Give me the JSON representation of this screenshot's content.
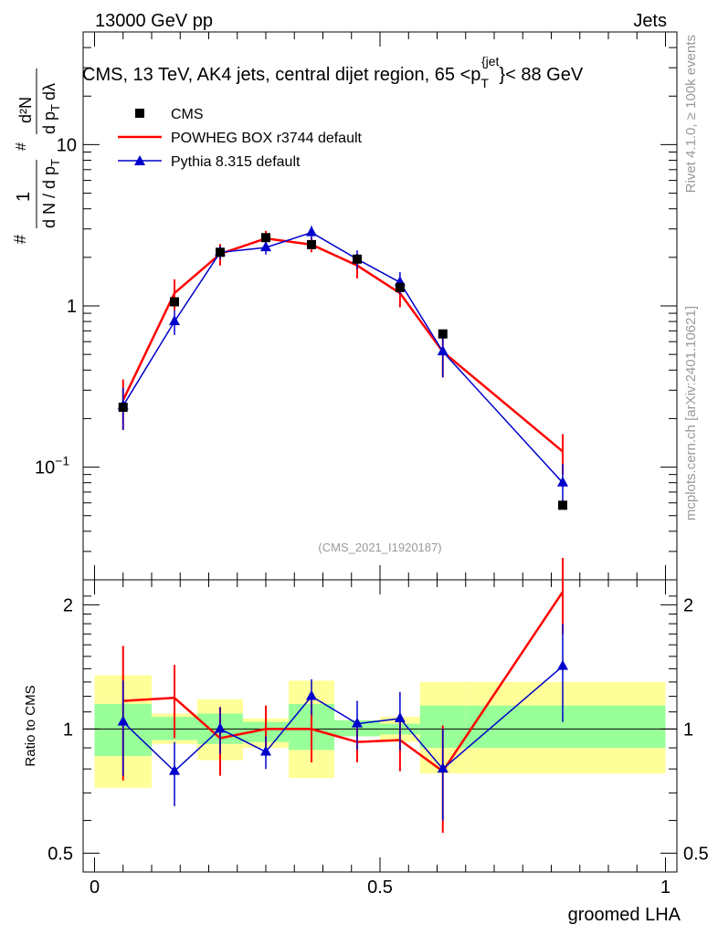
{
  "header": {
    "left": "13000 GeV pp",
    "right": "Jets"
  },
  "side_labels": {
    "rivet": "Rivet 4.1.0, ≥ 100k events",
    "mcplots": "mcplots.cern.ch [arXiv:2401.10621]"
  },
  "colors": {
    "cms": "#000000",
    "powheg": "#ff0000",
    "pythia": "#0000cc",
    "band_inner": "#99ff99",
    "band_outer": "#ffff99"
  },
  "chart_data": {
    "type": "line",
    "title_parts": {
      "main": "CMS, 13 TeV, AK4 jets, central dijet region, 65 <p",
      "sub": "T",
      "sup": "{jet",
      "tail": "}< 88 GeV"
    },
    "watermark": "(CMS_2021_I1920187)",
    "xlabel": "groomed LHA",
    "ylabel_main": {
      "frac_num": "1",
      "frac_den": "d N / d p",
      "frac_den_sub": "T",
      "hash": "#",
      "deriv_num": "d²N",
      "deriv_den": "d p",
      "deriv_den_sub": "T",
      "deriv_den_tail": "dλ"
    },
    "ylabel_ratio": "Ratio to CMS",
    "xlim": [
      -0.02,
      1.02
    ],
    "ylim_main": [
      0.02,
      50
    ],
    "ylim_ratio": [
      0.45,
      2.3
    ],
    "x_ticks": [
      0,
      0.5,
      1
    ],
    "x_tick_labels": [
      "0",
      "0.5",
      "1"
    ],
    "main_ticks": [
      {
        "value": 0.1,
        "label": "10",
        "sup": "−1"
      },
      {
        "value": 1,
        "label": "1",
        "sup": ""
      },
      {
        "value": 10,
        "label": "10",
        "sup": ""
      }
    ],
    "ratio_ticks": [
      {
        "value": 0.5,
        "label": "0.5"
      },
      {
        "value": 1,
        "label": "1"
      },
      {
        "value": 2,
        "label": "2"
      }
    ],
    "bin_edges": [
      0,
      0.1,
      0.18,
      0.26,
      0.34,
      0.42,
      0.5,
      0.57,
      0.65,
      1.0
    ],
    "series": [
      {
        "name": "CMS",
        "marker": "square",
        "x": [
          0.05,
          0.14,
          0.22,
          0.3,
          0.38,
          0.46,
          0.535,
          0.61,
          0.82
        ],
        "values": [
          0.235,
          1.06,
          2.15,
          2.65,
          2.4,
          1.95,
          1.3,
          0.67,
          0.058
        ]
      },
      {
        "name": "POWHEG BOX r3744 default",
        "marker": "line",
        "x": [
          0.05,
          0.14,
          0.22,
          0.3,
          0.38,
          0.46,
          0.535,
          0.61,
          0.82
        ],
        "values": [
          0.26,
          1.2,
          2.1,
          2.62,
          2.4,
          1.78,
          1.2,
          0.52,
          0.125
        ],
        "errors": [
          0.09,
          0.26,
          0.32,
          0.3,
          0.25,
          0.3,
          0.22,
          0.16,
          0.035
        ],
        "ratio": [
          1.17,
          1.19,
          0.95,
          1.0,
          1.0,
          0.93,
          0.94,
          0.79,
          2.15
        ],
        "ratio_err": [
          0.42,
          0.24,
          0.18,
          0.14,
          0.17,
          0.1,
          0.15,
          0.23,
          0.45
        ]
      },
      {
        "name": "Pythia 8.315 default",
        "marker": "triangle",
        "x": [
          0.05,
          0.14,
          0.22,
          0.3,
          0.38,
          0.46,
          0.535,
          0.61,
          0.82
        ],
        "values": [
          0.24,
          0.8,
          2.15,
          2.3,
          2.85,
          1.95,
          1.4,
          0.52,
          0.08
        ],
        "errors": [
          0.07,
          0.14,
          0.2,
          0.22,
          0.28,
          0.26,
          0.22,
          0.16,
          0.025
        ],
        "ratio": [
          1.04,
          0.79,
          1.0,
          0.88,
          1.2,
          1.03,
          1.06,
          0.8,
          1.42
        ],
        "ratio_err": [
          0.27,
          0.14,
          0.13,
          0.08,
          0.12,
          0.14,
          0.17,
          0.2,
          0.38
        ]
      }
    ],
    "ratio_band": {
      "inner": [
        [
          0.86,
          1.15
        ],
        [
          0.94,
          1.07
        ],
        [
          0.92,
          1.09
        ],
        [
          0.93,
          1.04
        ],
        [
          0.89,
          1.15
        ],
        [
          0.96,
          1.05
        ],
        [
          0.97,
          1.03
        ],
        [
          0.9,
          1.14
        ],
        [
          0.9,
          1.14
        ]
      ],
      "outer": [
        [
          0.72,
          1.35
        ],
        [
          0.92,
          1.09
        ],
        [
          0.84,
          1.18
        ],
        [
          0.9,
          1.06
        ],
        [
          0.76,
          1.31
        ],
        [
          0.96,
          1.05
        ],
        [
          0.93,
          1.07
        ],
        [
          0.78,
          1.3
        ],
        [
          0.78,
          1.3
        ]
      ]
    }
  }
}
